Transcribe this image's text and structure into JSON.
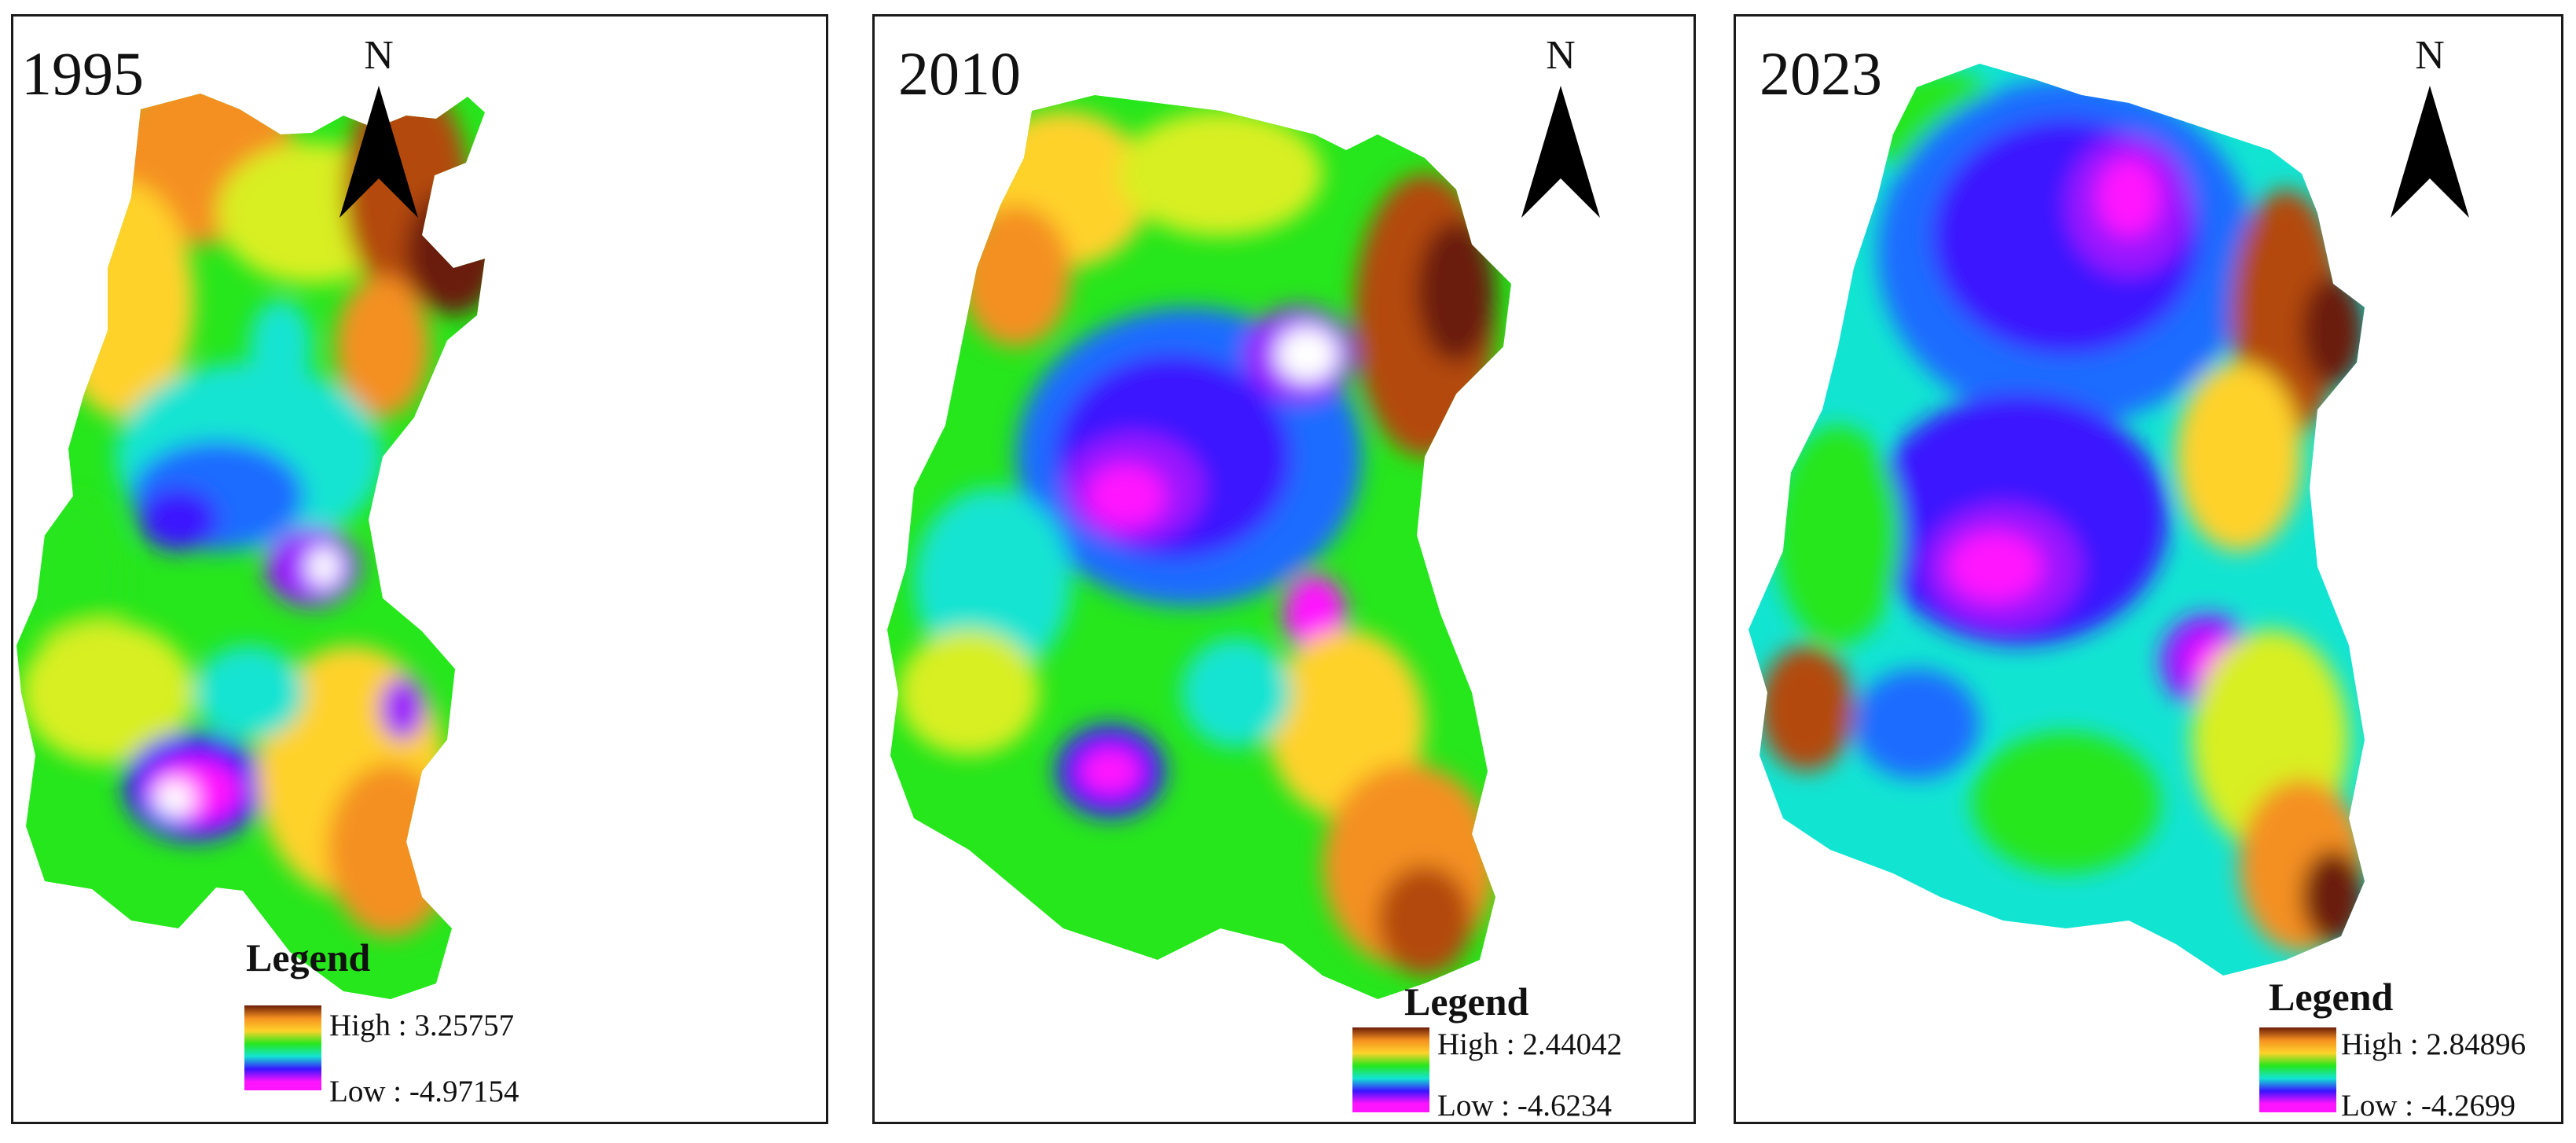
{
  "panels": [
    {
      "year": "1995",
      "north_label": "N",
      "legend_title": "Legend",
      "legend_high": "High : 3.25757",
      "legend_low": "Low : -4.97154"
    },
    {
      "year": "2010",
      "north_label": "N",
      "legend_title": "Legend",
      "legend_high": "High : 2.44042",
      "legend_low": "Low : -4.6234"
    },
    {
      "year": "2023",
      "north_label": "N",
      "legend_title": "Legend",
      "legend_high": "High : 2.84896",
      "legend_low": "Low : -4.2699"
    }
  ],
  "colors": {
    "ramp": [
      "#6b1e08",
      "#b34a10",
      "#f49020",
      "#ffd22a",
      "#d8ef20",
      "#26e61c",
      "#12e4d2",
      "#1e6cff",
      "#3a14ff",
      "#9a16ff",
      "#ff14ff",
      "#ffffff"
    ],
    "frame": "#1a1a1a",
    "north_arrow": "#000000"
  }
}
